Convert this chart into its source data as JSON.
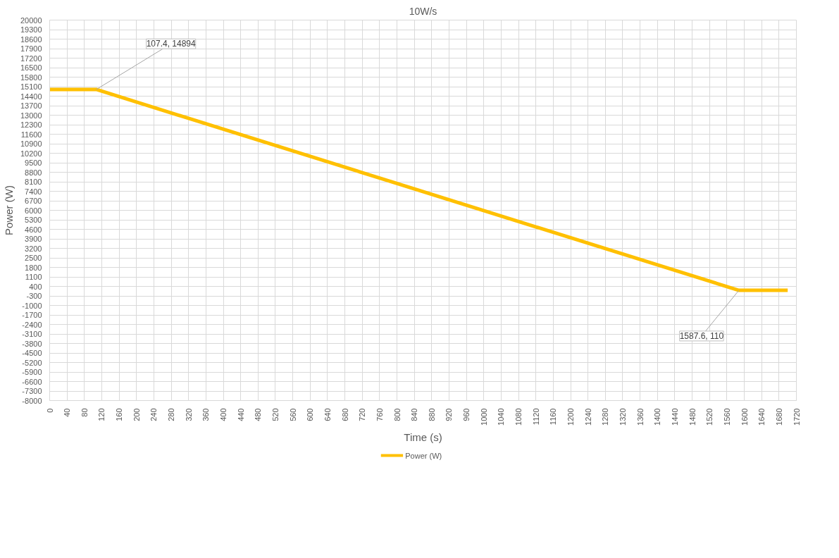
{
  "chart_data": {
    "type": "line",
    "title": "10W/s",
    "xlabel": "Time (s)",
    "ylabel": "Power (W)",
    "series": [
      {
        "name": "Power (W)",
        "color": "#ffc000",
        "x": [
          0,
          107.4,
          1587.6,
          1700
        ],
        "values": [
          14894,
          14894,
          110,
          110
        ]
      }
    ],
    "annotations": [
      {
        "text": "107.4, 14894",
        "x": 107.4,
        "y": 14894
      },
      {
        "text": "1587.6, 110",
        "x": 1587.6,
        "y": 110
      }
    ],
    "xlim": [
      0,
      1720
    ],
    "ylim": [
      -8000,
      20000
    ],
    "xticks": [
      0,
      40,
      80,
      120,
      160,
      200,
      240,
      280,
      320,
      360,
      400,
      440,
      480,
      520,
      560,
      600,
      640,
      680,
      720,
      760,
      800,
      840,
      880,
      920,
      960,
      1000,
      1040,
      1080,
      1120,
      1160,
      1200,
      1240,
      1280,
      1320,
      1360,
      1400,
      1440,
      1480,
      1520,
      1560,
      1600,
      1640,
      1680,
      1720
    ],
    "yticks": [
      -8000,
      -7300,
      -6600,
      -5900,
      -5200,
      -4500,
      -3800,
      -3100,
      -2400,
      -1700,
      -1000,
      -300,
      400,
      1100,
      1800,
      2500,
      3200,
      3900,
      4600,
      5300,
      6000,
      6700,
      7400,
      8100,
      8800,
      9500,
      10200,
      10900,
      11600,
      12300,
      13000,
      13700,
      14400,
      15100,
      15800,
      16500,
      17200,
      17900,
      18600,
      19300,
      20000
    ],
    "grid": true,
    "legend": "bottom",
    "marker": "none",
    "line_style": "solid"
  }
}
